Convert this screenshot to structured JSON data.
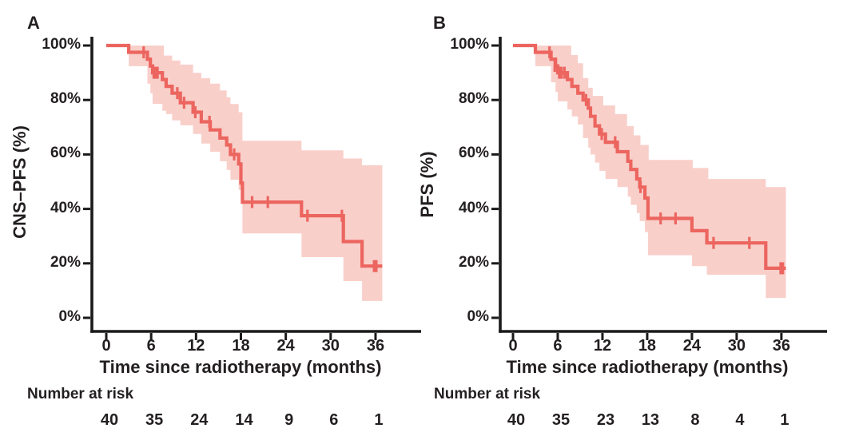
{
  "page": {
    "background": "#ffffff",
    "text_color": "#231f20",
    "axis_color": "#1a1a1a"
  },
  "chart_data": [
    {
      "type": "line",
      "subtype": "kaplan-meier-step",
      "panel_label": "A",
      "ylabel": "CNS–PFS (%)",
      "xlabel": "Time since radiotherapy (months)",
      "x_ticks": [
        0,
        6,
        12,
        18,
        24,
        30,
        36
      ],
      "y_ticks": [
        "100%",
        "80%",
        "60%",
        "40%",
        "20%",
        "0%"
      ],
      "y_tick_values": [
        100,
        80,
        60,
        40,
        20,
        0
      ],
      "xlim": [
        0,
        38
      ],
      "ylim": [
        0,
        100
      ],
      "grid": false,
      "legend": "none",
      "line_color": "#ec655f",
      "band_color": "#f9cfca",
      "curve_steps": [
        [
          0,
          100
        ],
        [
          3,
          97.5
        ],
        [
          5.5,
          95
        ],
        [
          5.9,
          92.5
        ],
        [
          6.2,
          90
        ],
        [
          7.5,
          87.5
        ],
        [
          8,
          85
        ],
        [
          8.8,
          82.5
        ],
        [
          9.9,
          79
        ],
        [
          11.6,
          75.5
        ],
        [
          12.7,
          72
        ],
        [
          13.9,
          69
        ],
        [
          15.2,
          66
        ],
        [
          16.1,
          63.5
        ],
        [
          16.6,
          60
        ],
        [
          17.7,
          56.5
        ],
        [
          18,
          49.5
        ],
        [
          18.2,
          42.5
        ],
        [
          26.1,
          37.5
        ],
        [
          31.7,
          28
        ],
        [
          34.2,
          19
        ]
      ],
      "curve_end_time": 36.9,
      "censor_marks": [
        [
          5,
          97.5
        ],
        [
          6.35,
          90
        ],
        [
          6.6,
          90
        ],
        [
          6.85,
          90
        ],
        [
          9.5,
          82.5
        ],
        [
          10.4,
          79
        ],
        [
          11.9,
          75.5
        ],
        [
          13.8,
          72
        ],
        [
          17.1,
          60
        ],
        [
          19.5,
          42.5
        ],
        [
          21.6,
          42.5
        ],
        [
          26.9,
          37.5
        ],
        [
          31.5,
          37.5
        ],
        [
          35.8,
          19
        ],
        [
          36.1,
          19
        ]
      ],
      "ci_upper": [
        [
          3,
          100
        ],
        [
          7.7,
          96.3
        ],
        [
          8.8,
          94.5
        ],
        [
          9.9,
          93
        ],
        [
          11.6,
          90
        ],
        [
          12.7,
          88
        ],
        [
          13.9,
          86
        ],
        [
          15.2,
          83.5
        ],
        [
          16.1,
          81
        ],
        [
          16.6,
          78.5
        ],
        [
          17.7,
          75.5
        ],
        [
          18.2,
          65
        ],
        [
          26.1,
          61.5
        ],
        [
          31.7,
          58.5
        ],
        [
          34.2,
          56
        ]
      ],
      "ci_lower": [
        [
          3,
          92.4
        ],
        [
          5.5,
          86
        ],
        [
          5.9,
          82.5
        ],
        [
          6.2,
          78.6
        ],
        [
          7.5,
          76
        ],
        [
          8,
          74.8
        ],
        [
          8.8,
          72.5
        ],
        [
          9.9,
          70.7
        ],
        [
          11.6,
          67.5
        ],
        [
          12.7,
          64
        ],
        [
          13.9,
          61
        ],
        [
          15.2,
          57.5
        ],
        [
          16.1,
          54.3
        ],
        [
          16.6,
          50.7
        ],
        [
          17.7,
          47
        ],
        [
          18.2,
          31
        ],
        [
          26.1,
          22.3
        ],
        [
          31.7,
          13.5
        ],
        [
          34.2,
          6.2
        ]
      ],
      "band_end_time": 36.9,
      "number_at_risk": {
        "label": "Number at risk",
        "times": [
          0,
          6,
          12,
          18,
          24,
          30,
          36
        ],
        "values": [
          40,
          35,
          24,
          14,
          9,
          6,
          1
        ]
      }
    },
    {
      "type": "line",
      "subtype": "kaplan-meier-step",
      "panel_label": "B",
      "ylabel": "PFS (%)",
      "xlabel": "Time since radiotherapy (months)",
      "x_ticks": [
        0,
        6,
        12,
        18,
        24,
        30,
        36
      ],
      "y_ticks": [
        "100%",
        "80%",
        "60%",
        "40%",
        "20%",
        "0%"
      ],
      "y_tick_values": [
        100,
        80,
        60,
        40,
        20,
        0
      ],
      "xlim": [
        0,
        38
      ],
      "ylim": [
        0,
        100
      ],
      "grid": false,
      "legend": "none",
      "line_color": "#ec655f",
      "band_color": "#f9cfca",
      "curve_steps": [
        [
          0,
          100
        ],
        [
          3,
          97.5
        ],
        [
          5.1,
          95
        ],
        [
          5.7,
          92.5
        ],
        [
          6,
          90
        ],
        [
          7.3,
          87.5
        ],
        [
          7.9,
          85
        ],
        [
          8.7,
          82.5
        ],
        [
          9.4,
          80
        ],
        [
          10.1,
          77
        ],
        [
          10.4,
          74
        ],
        [
          11,
          70.5
        ],
        [
          11.6,
          67.5
        ],
        [
          12.4,
          64.5
        ],
        [
          14,
          61
        ],
        [
          15.4,
          57.5
        ],
        [
          15.8,
          54.5
        ],
        [
          16.6,
          51
        ],
        [
          17,
          48
        ],
        [
          17.7,
          44
        ],
        [
          18.1,
          36.5
        ],
        [
          24,
          32
        ],
        [
          26,
          27.5
        ],
        [
          33.9,
          18.2
        ]
      ],
      "curve_end_time": 36.6,
      "censor_marks": [
        [
          4.9,
          97.5
        ],
        [
          5.6,
          92.5
        ],
        [
          6.2,
          90
        ],
        [
          6.5,
          90
        ],
        [
          6.9,
          90
        ],
        [
          9.8,
          80
        ],
        [
          11.9,
          67.5
        ],
        [
          13.7,
          64.5
        ],
        [
          17.1,
          48
        ],
        [
          19.8,
          36.5
        ],
        [
          21.8,
          36.5
        ],
        [
          26.9,
          27.5
        ],
        [
          31.7,
          27.5
        ],
        [
          35.9,
          18.2
        ],
        [
          36.2,
          18.2
        ]
      ],
      "ci_upper": [
        [
          3,
          100
        ],
        [
          7.8,
          96.5
        ],
        [
          8.7,
          93.5
        ],
        [
          9.4,
          88
        ],
        [
          10.1,
          84.5
        ],
        [
          10.7,
          81.5
        ],
        [
          12.1,
          78
        ],
        [
          13.7,
          74.8
        ],
        [
          15.3,
          70.4
        ],
        [
          16.2,
          67
        ],
        [
          17.1,
          63.5
        ],
        [
          18.2,
          58
        ],
        [
          24.1,
          55
        ],
        [
          26.2,
          51
        ],
        [
          33.9,
          48
        ]
      ],
      "ci_lower": [
        [
          3,
          92.4
        ],
        [
          5.1,
          86.5
        ],
        [
          5.7,
          83
        ],
        [
          6,
          79.5
        ],
        [
          7.3,
          76.5
        ],
        [
          7.9,
          74
        ],
        [
          8.7,
          71
        ],
        [
          9.4,
          66
        ],
        [
          10.1,
          62.5
        ],
        [
          10.4,
          60
        ],
        [
          11,
          57
        ],
        [
          11.6,
          54
        ],
        [
          12.4,
          51
        ],
        [
          14,
          48
        ],
        [
          15.4,
          44.5
        ],
        [
          15.8,
          41.5
        ],
        [
          16.6,
          38.5
        ],
        [
          17,
          35.5
        ],
        [
          17.7,
          31.5
        ],
        [
          18.1,
          23
        ],
        [
          24,
          19
        ],
        [
          26,
          15.8
        ],
        [
          33.9,
          7.3
        ]
      ],
      "band_end_time": 36.6,
      "number_at_risk": {
        "label": "Number at risk",
        "times": [
          0,
          6,
          12,
          18,
          24,
          30,
          36
        ],
        "values": [
          40,
          35,
          23,
          13,
          8,
          4,
          1
        ]
      }
    }
  ]
}
